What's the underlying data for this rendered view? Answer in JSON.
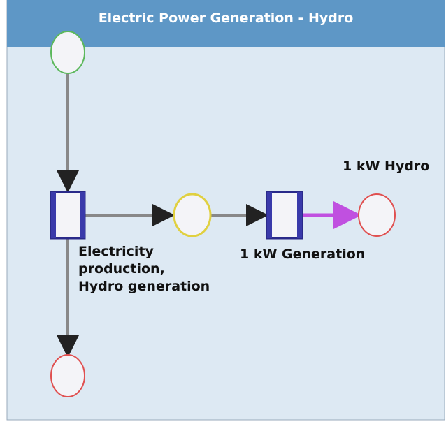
{
  "header": {
    "title": "Electric Power Generation - Hydro"
  },
  "nodes": [
    {
      "label": "Electricity production, Hydro generation"
    },
    {
      "label": "1 kW Generation"
    },
    {
      "label": "1 kW Hydro"
    }
  ]
}
